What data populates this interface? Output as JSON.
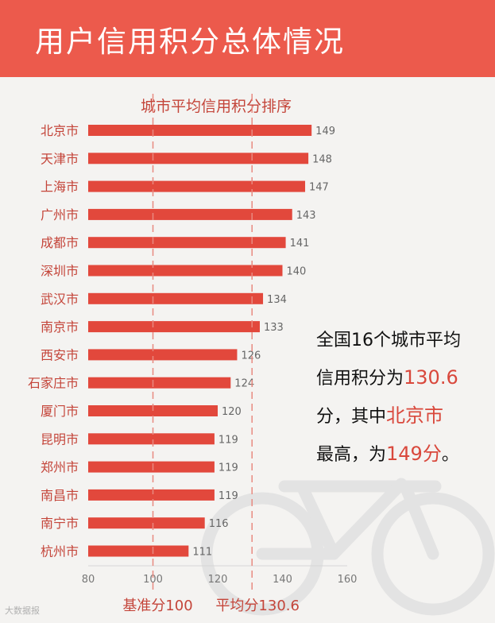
{
  "header": {
    "title": "用户信用积分总体情况"
  },
  "colors": {
    "accent": "#ec5a4c",
    "bar": "#e2483c",
    "label": "#c4453a",
    "highlight": "#d9483c"
  },
  "chart_data": {
    "type": "bar",
    "orientation": "horizontal",
    "title": "城市平均信用积分排序",
    "categories": [
      "北京市",
      "天津市",
      "上海市",
      "广州市",
      "成都市",
      "深圳市",
      "武汉市",
      "南京市",
      "西安市",
      "石家庄市",
      "厦门市",
      "昆明市",
      "郑州市",
      "南昌市",
      "南宁市",
      "杭州市"
    ],
    "values": [
      149,
      148,
      147,
      143,
      141,
      140,
      134,
      133,
      126,
      124,
      120,
      119,
      119,
      119,
      116,
      111
    ],
    "xlim": [
      80,
      160
    ],
    "xticks": [
      80,
      100,
      120,
      140,
      160
    ],
    "reference_lines": [
      {
        "value": 100,
        "label": "基准分100"
      },
      {
        "value": 130.6,
        "label": "平均分130.6"
      }
    ],
    "grid": false,
    "legend": "none"
  },
  "callout": {
    "line1": "全国16个城市平均",
    "line2_prefix": "信用积分为",
    "line2_value": "130.6",
    "line3_prefix": "分，其中",
    "line3_city": "北京市",
    "line4_prefix": "最高，为",
    "line4_value": "149分",
    "line4_suffix": "。"
  },
  "watermark": "大数据报"
}
